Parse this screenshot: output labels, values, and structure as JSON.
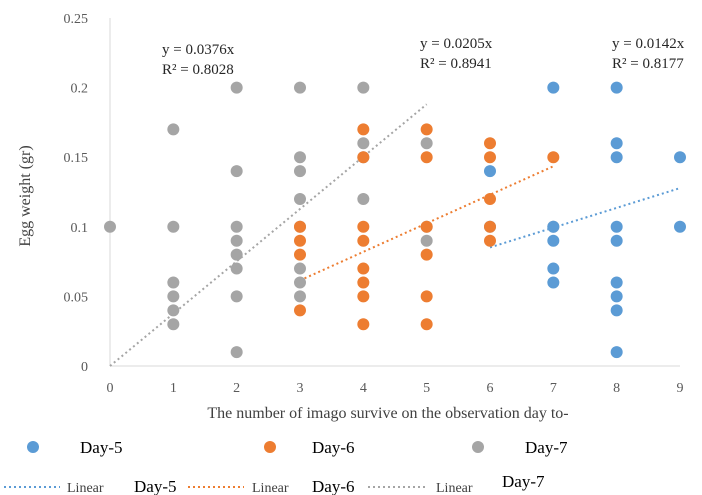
{
  "chart_data": {
    "type": "scatter",
    "xlabel": "The number of imago survive on the observation day to-",
    "ylabel": "Egg weight (gr)",
    "xlim": [
      0,
      9
    ],
    "ylim": [
      0,
      0.25
    ],
    "x_ticks": [
      "0",
      "1",
      "2",
      "3",
      "4",
      "5",
      "6",
      "7",
      "8",
      "9"
    ],
    "y_ticks": [
      "0",
      "0.05",
      "0.1",
      "0.15",
      "0.2",
      "0.25"
    ],
    "grid": false,
    "series": [
      {
        "name": "Day-5",
        "color": "#5B9BD5",
        "points": [
          [
            6,
            0.14
          ],
          [
            6,
            0.1
          ],
          [
            7,
            0.2
          ],
          [
            7,
            0.1
          ],
          [
            7,
            0.09
          ],
          [
            7,
            0.07
          ],
          [
            7,
            0.06
          ],
          [
            8,
            0.2
          ],
          [
            8,
            0.16
          ],
          [
            8,
            0.15
          ],
          [
            8,
            0.1
          ],
          [
            8,
            0.09
          ],
          [
            8,
            0.06
          ],
          [
            8,
            0.05
          ],
          [
            8,
            0.04
          ],
          [
            8,
            0.01
          ],
          [
            9,
            0.15
          ],
          [
            9,
            0.1
          ]
        ],
        "trendline": {
          "label": "Linear",
          "name": "Day-5",
          "slope": 0.0142,
          "x_range": [
            6,
            9
          ],
          "equation": "y = 0.0142x",
          "r2": "R² = 0.8177"
        }
      },
      {
        "name": "Day-6",
        "color": "#ED7D31",
        "points": [
          [
            3,
            0.1
          ],
          [
            3,
            0.09
          ],
          [
            3,
            0.08
          ],
          [
            3,
            0.04
          ],
          [
            4,
            0.17
          ],
          [
            4,
            0.15
          ],
          [
            4,
            0.1
          ],
          [
            4,
            0.09
          ],
          [
            4,
            0.07
          ],
          [
            4,
            0.06
          ],
          [
            4,
            0.05
          ],
          [
            4,
            0.03
          ],
          [
            5,
            0.17
          ],
          [
            5,
            0.15
          ],
          [
            5,
            0.1
          ],
          [
            5,
            0.08
          ],
          [
            5,
            0.05
          ],
          [
            5,
            0.03
          ],
          [
            6,
            0.16
          ],
          [
            6,
            0.15
          ],
          [
            6,
            0.12
          ],
          [
            6,
            0.1
          ],
          [
            6,
            0.09
          ],
          [
            7,
            0.15
          ]
        ],
        "trendline": {
          "label": "Linear",
          "name": "Day-6",
          "slope": 0.0205,
          "x_range": [
            3,
            7
          ],
          "equation": "y = 0.0205x",
          "r2": "R² = 0.8941"
        }
      },
      {
        "name": "Day-7",
        "color": "#A5A5A5",
        "points": [
          [
            0,
            0.1
          ],
          [
            1,
            0.17
          ],
          [
            1,
            0.1
          ],
          [
            1,
            0.06
          ],
          [
            1,
            0.05
          ],
          [
            1,
            0.04
          ],
          [
            1,
            0.03
          ],
          [
            2,
            0.2
          ],
          [
            2,
            0.14
          ],
          [
            2,
            0.1
          ],
          [
            2,
            0.09
          ],
          [
            2,
            0.08
          ],
          [
            2,
            0.07
          ],
          [
            2,
            0.05
          ],
          [
            2,
            0.01
          ],
          [
            3,
            0.2
          ],
          [
            3,
            0.15
          ],
          [
            3,
            0.14
          ],
          [
            3,
            0.12
          ],
          [
            3,
            0.1
          ],
          [
            3,
            0.07
          ],
          [
            3,
            0.06
          ],
          [
            3,
            0.05
          ],
          [
            4,
            0.2
          ],
          [
            4,
            0.16
          ],
          [
            4,
            0.15
          ],
          [
            4,
            0.12
          ],
          [
            5,
            0.16
          ],
          [
            5,
            0.1
          ],
          [
            5,
            0.09
          ],
          [
            7,
            0.1
          ]
        ],
        "trendline": {
          "label": "Linear",
          "name": "Day-7",
          "slope": 0.0376,
          "x_range": [
            0,
            5
          ],
          "equation": "y = 0.0376x",
          "r2": "R² = 0.8028"
        }
      }
    ],
    "legend_placement": "bottom"
  }
}
